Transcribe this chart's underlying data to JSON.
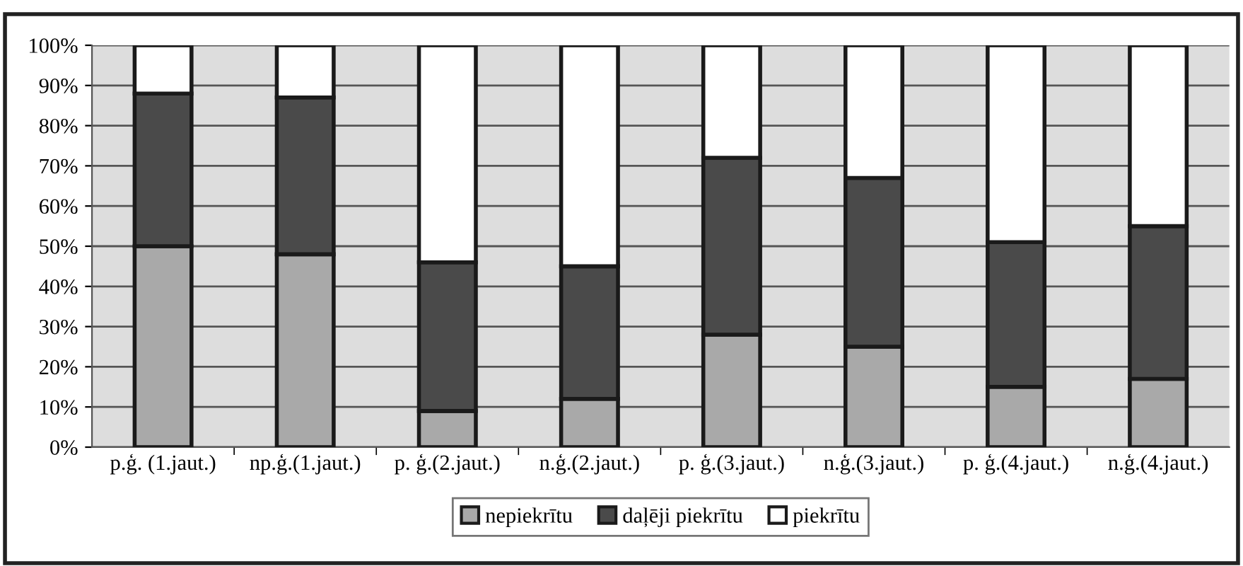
{
  "chart_data": {
    "type": "bar",
    "stacked": true,
    "categories": [
      "p.ģ. (1.jaut.)",
      "np.ģ.(1.jaut.)",
      "p. ģ.(2.jaut.)",
      "n.ģ.(2.jaut.)",
      "p. ģ.(3.jaut.)",
      "n.ģ.(3.jaut.)",
      "p. ģ.(4.jaut.)",
      "n.ģ.(4.jaut.)"
    ],
    "series": [
      {
        "name": "nepiekrītu",
        "color": "#a9a9a9",
        "values": [
          50,
          48,
          9,
          12,
          28,
          25,
          15,
          17
        ]
      },
      {
        "name": "daļēji piekrītu",
        "color": "#4a4a4a",
        "values": [
          38,
          39,
          37,
          33,
          44,
          42,
          36,
          38
        ]
      },
      {
        "name": "piekrītu",
        "color": "#ffffff",
        "values": [
          12,
          13,
          54,
          55,
          28,
          33,
          49,
          45
        ]
      }
    ],
    "ylim": [
      0,
      100
    ],
    "yticks": [
      {
        "value": 0,
        "label": "0%"
      },
      {
        "value": 10,
        "label": "10%"
      },
      {
        "value": 20,
        "label": "20%"
      },
      {
        "value": 30,
        "label": "30%"
      },
      {
        "value": 40,
        "label": "40%"
      },
      {
        "value": 50,
        "label": "50%"
      },
      {
        "value": 60,
        "label": "60%"
      },
      {
        "value": 70,
        "label": "70%"
      },
      {
        "value": 80,
        "label": "80%"
      },
      {
        "value": 90,
        "label": "90%"
      },
      {
        "value": 100,
        "label": "100%"
      }
    ],
    "grid": "y",
    "legend": "bottom"
  }
}
